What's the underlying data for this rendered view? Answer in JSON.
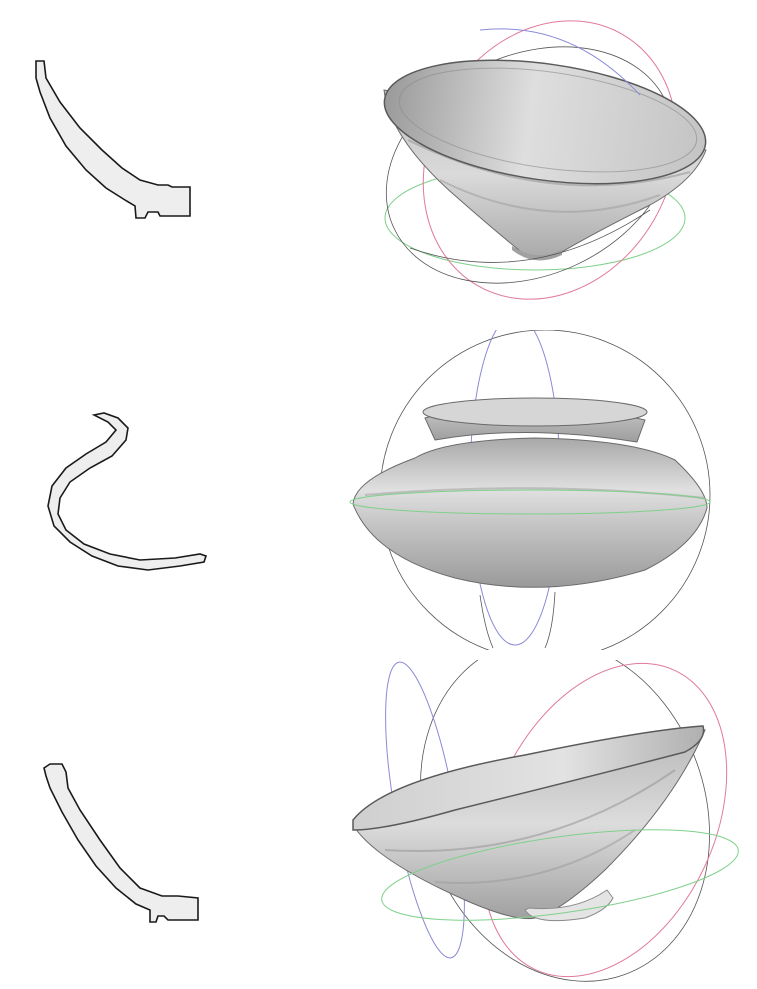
{
  "colors": {
    "background": "#ffffff",
    "profile_fill": "#eeeeee",
    "profile_stroke": "#1a1a1a",
    "vessel_light": "#dcdcdc",
    "vessel_mid": "#b8b8b8",
    "vessel_dark": "#8a8a8a",
    "guide_red": "#e07a9a",
    "guide_green": "#7fd08a",
    "guide_blue": "#8a8ad8",
    "guide_gray": "#555555"
  },
  "rows": [
    {
      "profile_icon": "bowl-profile-section-icon",
      "render_icon": "bowl-3d-render-icon"
    },
    {
      "profile_icon": "jar-profile-section-icon",
      "render_icon": "jar-3d-render-icon"
    },
    {
      "profile_icon": "conical-bowl-profile-section-icon",
      "render_icon": "conical-bowl-3d-render-icon"
    }
  ]
}
